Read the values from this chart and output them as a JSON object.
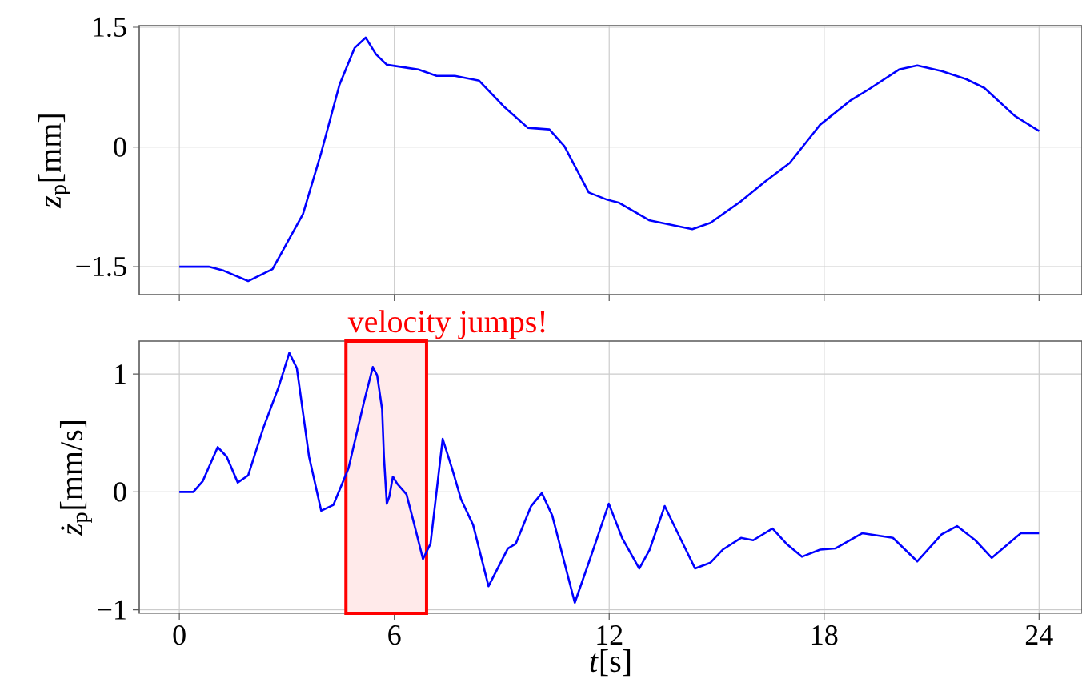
{
  "chart_data": [
    {
      "type": "line",
      "ylabel": "*z*$_{p}$[mm]",
      "xlim": [
        -1.12,
        25.2
      ],
      "ylim": [
        -1.85,
        1.52
      ],
      "xticks": [
        0,
        6,
        12,
        18,
        24
      ],
      "yticks": [
        {
          "value": -1.5,
          "label": "−1.5"
        },
        0,
        1.5
      ],
      "tick_labels": "y",
      "grid": true,
      "x": [
        0,
        0.82,
        1.24,
        1.92,
        2.6,
        3.45,
        3.96,
        4.47,
        4.89,
        5.2,
        5.49,
        5.79,
        6.67,
        7.18,
        7.69,
        8.37,
        9.05,
        9.73,
        10.33,
        10.75,
        11.43,
        11.94,
        12.28,
        13.13,
        14.32,
        14.83,
        15.68,
        16.36,
        17.04,
        17.89,
        18.73,
        19.24,
        20.09,
        20.6,
        21.28,
        21.96,
        22.47,
        23.32,
        24
      ],
      "series": [
        {
          "color": "#0000ff",
          "values": [
            -1.5,
            -1.5,
            -1.55,
            -1.68,
            -1.53,
            -0.84,
            -0.07,
            0.78,
            1.24,
            1.37,
            1.16,
            1.03,
            0.97,
            0.89,
            0.89,
            0.83,
            0.51,
            0.24,
            0.22,
            0.01,
            -0.57,
            -0.66,
            -0.7,
            -0.92,
            -1.03,
            -0.95,
            -0.68,
            -0.43,
            -0.2,
            0.28,
            0.58,
            0.72,
            0.97,
            1.02,
            0.95,
            0.85,
            0.74,
            0.39,
            0.2
          ]
        }
      ]
    },
    {
      "type": "line",
      "xlabel": "*t*[s]",
      "ylabel": "*ż*$_{p}$[mm/s]",
      "xlim": [
        -1.12,
        25.2
      ],
      "ylim": [
        -1.03,
        1.28
      ],
      "xticks": [
        0,
        6,
        12,
        18,
        24
      ],
      "yticks": [
        {
          "value": -1,
          "label": "−1"
        },
        0,
        1
      ],
      "grid": true,
      "x": [
        0,
        0.39,
        0.65,
        1.07,
        1.32,
        1.63,
        1.92,
        2.34,
        2.77,
        3.07,
        3.28,
        3.62,
        3.96,
        4.3,
        4.72,
        5.15,
        5.4,
        5.52,
        5.66,
        5.71,
        5.79,
        5.86,
        5.96,
        6.08,
        6.34,
        6.56,
        6.8,
        7.01,
        7.35,
        7.61,
        7.86,
        8.2,
        8.63,
        9.17,
        9.39,
        9.82,
        10.12,
        10.41,
        11.04,
        11.43,
        11.99,
        12.36,
        12.84,
        13.13,
        13.55,
        13.98,
        14.4,
        14.83,
        15.17,
        15.68,
        16.02,
        16.56,
        16.95,
        17.38,
        17.89,
        18.31,
        19.07,
        19.92,
        20.6,
        21.28,
        21.71,
        22.22,
        22.68,
        23.49,
        24
      ],
      "series": [
        {
          "color": "#0000ff",
          "values": [
            0,
            0,
            0.09,
            0.38,
            0.3,
            0.08,
            0.14,
            0.54,
            0.89,
            1.18,
            1.05,
            0.3,
            -0.16,
            -0.11,
            0.2,
            0.76,
            1.06,
            0.99,
            0.7,
            0.3,
            -0.1,
            -0.04,
            0.13,
            0.07,
            -0.02,
            -0.28,
            -0.57,
            -0.44,
            0.45,
            0.2,
            -0.06,
            -0.28,
            -0.8,
            -0.48,
            -0.44,
            -0.12,
            -0.01,
            -0.2,
            -0.94,
            -0.6,
            -0.1,
            -0.39,
            -0.65,
            -0.49,
            -0.12,
            -0.39,
            -0.65,
            -0.6,
            -0.49,
            -0.39,
            -0.41,
            -0.31,
            -0.44,
            -0.55,
            -0.49,
            -0.48,
            -0.35,
            -0.39,
            -0.59,
            -0.36,
            -0.29,
            -0.41,
            -0.56,
            -0.35,
            -0.35
          ]
        }
      ],
      "bands": [
        {
          "axis": "x",
          "from": 4.65,
          "to": 6.9,
          "label": "velocity jumps!",
          "color": "#ff0000"
        }
      ]
    }
  ]
}
